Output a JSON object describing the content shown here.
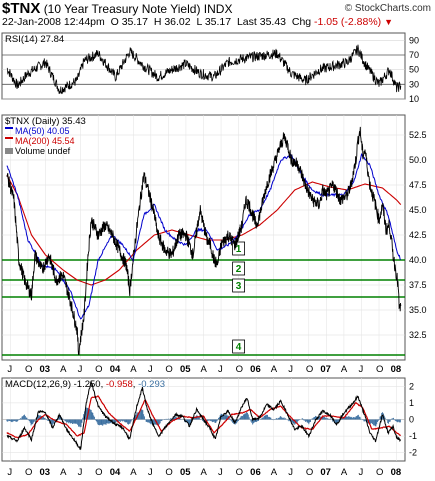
{
  "header": {
    "symbol": "$TNX",
    "name": "(10 Year Treasury Note Yield)",
    "exchange": "INDX",
    "datetime": "22-Jan-2008 12:44pm",
    "open_label": "O",
    "open": "35.17",
    "high_label": "H",
    "high": "36.02",
    "low_label": "L",
    "low": "35.17",
    "last_label": "Last",
    "last": "35.43",
    "chg_label": "Chg",
    "chg": "-1.05 (-2.88%)",
    "brand": "© StockCharts.com"
  },
  "colors": {
    "up": "#000000",
    "ma50": "#0000cc",
    "ma200": "#cc0000",
    "support": "#008000",
    "histogram": "#3b6fa0",
    "signal": "#cc0000"
  },
  "chart_data": [
    {
      "type": "line",
      "panel": "RSI",
      "label": "RSI(14)",
      "last_value": 27.84,
      "ylim": [
        10,
        100
      ],
      "ticks": [
        10,
        30,
        50,
        70,
        90
      ],
      "overbought": 70,
      "oversold": 30,
      "series_x_range": [
        2002.45,
        2008.06
      ],
      "anchors": [
        [
          2002.45,
          52
        ],
        [
          2002.6,
          28
        ],
        [
          2002.75,
          45
        ],
        [
          2003.0,
          60
        ],
        [
          2003.2,
          22
        ],
        [
          2003.45,
          35
        ],
        [
          2003.55,
          62
        ],
        [
          2003.75,
          72
        ],
        [
          2004.0,
          40
        ],
        [
          2004.2,
          75
        ],
        [
          2004.4,
          55
        ],
        [
          2004.6,
          40
        ],
        [
          2004.8,
          50
        ],
        [
          2005.0,
          58
        ],
        [
          2005.2,
          45
        ],
        [
          2005.4,
          40
        ],
        [
          2005.6,
          60
        ],
        [
          2005.8,
          65
        ],
        [
          2006.0,
          68
        ],
        [
          2006.3,
          72
        ],
        [
          2006.5,
          45
        ],
        [
          2006.7,
          35
        ],
        [
          2006.9,
          50
        ],
        [
          2007.1,
          55
        ],
        [
          2007.3,
          60
        ],
        [
          2007.45,
          78
        ],
        [
          2007.55,
          58
        ],
        [
          2007.75,
          30
        ],
        [
          2007.9,
          50
        ],
        [
          2008.0,
          25
        ],
        [
          2008.06,
          28
        ]
      ]
    },
    {
      "type": "line",
      "panel": "Price",
      "title": "$TNX (Daily) 35.43",
      "legend": [
        {
          "name": "MA(50)",
          "value": "40.05"
        },
        {
          "name": "MA(200)",
          "value": "45.54"
        },
        {
          "name": "Volume",
          "value": "undef"
        }
      ],
      "ylim": [
        30,
        54.5
      ],
      "ticks": [
        32.5,
        35.0,
        37.5,
        40.0,
        42.5,
        45.0,
        47.5,
        50.0,
        52.5
      ],
      "x_ticks": [
        "J",
        "O",
        "03",
        "A",
        "J",
        "O",
        "04",
        "A",
        "J",
        "O",
        "05",
        "A",
        "J",
        "O",
        "06",
        "A",
        "J",
        "O",
        "07",
        "A",
        "J",
        "O",
        "08"
      ],
      "x_tick_dates": [
        2002.5,
        2002.75,
        2003.0,
        2003.25,
        2003.5,
        2003.75,
        2004.0,
        2004.25,
        2004.5,
        2004.75,
        2005.0,
        2005.25,
        2005.5,
        2005.75,
        2006.0,
        2006.25,
        2006.5,
        2006.75,
        2007.0,
        2007.25,
        2007.5,
        2007.75,
        2008.0
      ],
      "price": [
        [
          2002.45,
          48.5
        ],
        [
          2002.55,
          46.0
        ],
        [
          2002.62,
          40.0
        ],
        [
          2002.7,
          38.0
        ],
        [
          2002.8,
          36.5
        ],
        [
          2002.85,
          40.5
        ],
        [
          2002.95,
          39.0
        ],
        [
          2003.05,
          40.5
        ],
        [
          2003.15,
          38.0
        ],
        [
          2003.25,
          38.5
        ],
        [
          2003.35,
          36.0
        ],
        [
          2003.45,
          33.0
        ],
        [
          2003.47,
          30.8
        ],
        [
          2003.55,
          34.5
        ],
        [
          2003.6,
          40.0
        ],
        [
          2003.65,
          44.0
        ],
        [
          2003.75,
          42.5
        ],
        [
          2003.85,
          43.5
        ],
        [
          2003.95,
          42.5
        ],
        [
          2004.05,
          41.0
        ],
        [
          2004.15,
          39.5
        ],
        [
          2004.2,
          37.0
        ],
        [
          2004.28,
          42.0
        ],
        [
          2004.35,
          46.0
        ],
        [
          2004.4,
          48.5
        ],
        [
          2004.48,
          46.5
        ],
        [
          2004.55,
          44.5
        ],
        [
          2004.6,
          42.5
        ],
        [
          2004.7,
          41.0
        ],
        [
          2004.8,
          40.5
        ],
        [
          2004.9,
          42.5
        ],
        [
          2005.0,
          42.5
        ],
        [
          2005.1,
          40.5
        ],
        [
          2005.2,
          45.0
        ],
        [
          2005.3,
          42.0
        ],
        [
          2005.35,
          41.5
        ],
        [
          2005.4,
          40.0
        ],
        [
          2005.45,
          39.5
        ],
        [
          2005.5,
          41.5
        ],
        [
          2005.6,
          42.5
        ],
        [
          2005.7,
          41.5
        ],
        [
          2005.8,
          43.5
        ],
        [
          2005.85,
          46.0
        ],
        [
          2005.9,
          45.5
        ],
        [
          2006.0,
          43.5
        ],
        [
          2006.05,
          44.5
        ],
        [
          2006.15,
          47.5
        ],
        [
          2006.25,
          49.5
        ],
        [
          2006.35,
          51.5
        ],
        [
          2006.4,
          52.3
        ],
        [
          2006.45,
          51.5
        ],
        [
          2006.5,
          50.0
        ],
        [
          2006.6,
          49.5
        ],
        [
          2006.7,
          47.5
        ],
        [
          2006.8,
          46.0
        ],
        [
          2006.9,
          45.5
        ],
        [
          2006.95,
          47.0
        ],
        [
          2007.0,
          46.5
        ],
        [
          2007.1,
          47.5
        ],
        [
          2007.2,
          46.0
        ],
        [
          2007.3,
          46.5
        ],
        [
          2007.35,
          47.5
        ],
        [
          2007.42,
          50.0
        ],
        [
          2007.45,
          52.0
        ],
        [
          2007.48,
          53.0
        ],
        [
          2007.52,
          50.5
        ],
        [
          2007.55,
          51.0
        ],
        [
          2007.62,
          47.5
        ],
        [
          2007.7,
          45.5
        ],
        [
          2007.75,
          44.0
        ],
        [
          2007.8,
          45.5
        ],
        [
          2007.85,
          43.0
        ],
        [
          2007.9,
          43.5
        ],
        [
          2007.95,
          40.5
        ],
        [
          2008.0,
          38.5
        ],
        [
          2008.02,
          37.5
        ],
        [
          2008.04,
          35.0
        ],
        [
          2008.06,
          35.4
        ]
      ],
      "ma50": [
        [
          2002.45,
          49.5
        ],
        [
          2002.6,
          46.5
        ],
        [
          2002.75,
          42.0
        ],
        [
          2002.95,
          39.5
        ],
        [
          2003.15,
          39.0
        ],
        [
          2003.35,
          37.0
        ],
        [
          2003.5,
          34.0
        ],
        [
          2003.62,
          35.5
        ],
        [
          2003.75,
          40.0
        ],
        [
          2003.95,
          42.5
        ],
        [
          2004.1,
          41.5
        ],
        [
          2004.25,
          40.0
        ],
        [
          2004.4,
          44.5
        ],
        [
          2004.55,
          45.5
        ],
        [
          2004.7,
          43.0
        ],
        [
          2004.85,
          42.0
        ],
        [
          2005.0,
          41.5
        ],
        [
          2005.15,
          43.0
        ],
        [
          2005.3,
          43.0
        ],
        [
          2005.45,
          41.0
        ],
        [
          2005.6,
          41.5
        ],
        [
          2005.75,
          42.5
        ],
        [
          2005.9,
          44.5
        ],
        [
          2006.05,
          45.0
        ],
        [
          2006.2,
          47.0
        ],
        [
          2006.35,
          50.0
        ],
        [
          2006.5,
          50.5
        ],
        [
          2006.65,
          48.5
        ],
        [
          2006.8,
          47.0
        ],
        [
          2006.95,
          46.5
        ],
        [
          2007.1,
          46.5
        ],
        [
          2007.25,
          46.5
        ],
        [
          2007.4,
          48.0
        ],
        [
          2007.5,
          50.5
        ],
        [
          2007.62,
          49.5
        ],
        [
          2007.75,
          46.5
        ],
        [
          2007.88,
          44.5
        ],
        [
          2008.0,
          41.0
        ],
        [
          2008.06,
          40.05
        ]
      ],
      "ma200": [
        [
          2002.45,
          48.5
        ],
        [
          2002.6,
          46.5
        ],
        [
          2002.8,
          42.5
        ],
        [
          2003.0,
          40.5
        ],
        [
          2003.25,
          39.0
        ],
        [
          2003.45,
          38.0
        ],
        [
          2003.65,
          37.5
        ],
        [
          2003.85,
          38.0
        ],
        [
          2004.05,
          39.0
        ],
        [
          2004.3,
          41.0
        ],
        [
          2004.55,
          42.5
        ],
        [
          2004.8,
          43.0
        ],
        [
          2005.05,
          42.5
        ],
        [
          2005.3,
          42.0
        ],
        [
          2005.55,
          42.0
        ],
        [
          2005.8,
          42.5
        ],
        [
          2006.05,
          43.5
        ],
        [
          2006.3,
          45.0
        ],
        [
          2006.55,
          47.0
        ],
        [
          2006.8,
          47.8
        ],
        [
          2007.05,
          47.3
        ],
        [
          2007.3,
          47.0
        ],
        [
          2007.55,
          47.6
        ],
        [
          2007.8,
          47.2
        ],
        [
          2008.0,
          46.0
        ],
        [
          2008.06,
          45.54
        ]
      ],
      "support_lines": [
        {
          "label": "1",
          "value": 40.0
        },
        {
          "label": "2",
          "value": 38.0
        },
        {
          "label": "3",
          "value": 36.3
        },
        {
          "label": "4",
          "value": 30.5
        }
      ],
      "annotation_dates": [
        2005.75,
        2005.75,
        2005.75,
        2005.75
      ]
    },
    {
      "type": "line",
      "panel": "MACD",
      "label": "MACD(12,26,9)",
      "values": {
        "macd": "-1.250",
        "signal": "-0.958",
        "histogram": "-0.293"
      },
      "ylim": [
        -2.5,
        2.5
      ],
      "ticks": [
        -2,
        -1,
        0,
        1,
        2
      ],
      "x_ticks": [
        "J",
        "O",
        "03",
        "A",
        "J",
        "O",
        "04",
        "A",
        "J",
        "O",
        "05",
        "A",
        "J",
        "O",
        "06",
        "A",
        "J",
        "O",
        "07",
        "A",
        "J",
        "O",
        "08"
      ],
      "macd": [
        [
          2002.45,
          -1.0
        ],
        [
          2002.6,
          -1.3
        ],
        [
          2002.7,
          -0.5
        ],
        [
          2002.8,
          -1.2
        ],
        [
          2002.9,
          0.5
        ],
        [
          2003.0,
          0.4
        ],
        [
          2003.1,
          -0.5
        ],
        [
          2003.2,
          0.3
        ],
        [
          2003.3,
          -0.6
        ],
        [
          2003.42,
          -1.3
        ],
        [
          2003.5,
          -1.8
        ],
        [
          2003.58,
          1.0
        ],
        [
          2003.65,
          2.3
        ],
        [
          2003.75,
          0.8
        ],
        [
          2003.85,
          0.2
        ],
        [
          2004.0,
          -0.3
        ],
        [
          2004.1,
          -0.5
        ],
        [
          2004.2,
          -1.2
        ],
        [
          2004.3,
          0.8
        ],
        [
          2004.38,
          1.9
        ],
        [
          2004.45,
          0.6
        ],
        [
          2004.55,
          -0.5
        ],
        [
          2004.62,
          -1.0
        ],
        [
          2004.7,
          -0.5
        ],
        [
          2004.85,
          0.3
        ],
        [
          2004.95,
          0.2
        ],
        [
          2005.05,
          -0.4
        ],
        [
          2005.15,
          0.6
        ],
        [
          2005.25,
          0.0
        ],
        [
          2005.35,
          -0.6
        ],
        [
          2005.42,
          -1.2
        ],
        [
          2005.5,
          0.2
        ],
        [
          2005.6,
          0.5
        ],
        [
          2005.7,
          -0.2
        ],
        [
          2005.8,
          0.8
        ],
        [
          2005.87,
          1.3
        ],
        [
          2005.95,
          0.0
        ],
        [
          2006.05,
          0.1
        ],
        [
          2006.15,
          0.9
        ],
        [
          2006.25,
          0.6
        ],
        [
          2006.35,
          1.1
        ],
        [
          2006.45,
          0.3
        ],
        [
          2006.55,
          -0.6
        ],
        [
          2006.65,
          -0.4
        ],
        [
          2006.75,
          -1.0
        ],
        [
          2006.85,
          0.0
        ],
        [
          2006.95,
          0.5
        ],
        [
          2007.05,
          0.3
        ],
        [
          2007.15,
          -0.3
        ],
        [
          2007.25,
          0.4
        ],
        [
          2007.38,
          1.0
        ],
        [
          2007.45,
          1.4
        ],
        [
          2007.55,
          0.2
        ],
        [
          2007.62,
          -0.8
        ],
        [
          2007.7,
          -1.3
        ],
        [
          2007.8,
          0.3
        ],
        [
          2007.88,
          -0.8
        ],
        [
          2007.95,
          -0.4
        ],
        [
          2008.0,
          -1.1
        ],
        [
          2008.06,
          -1.25
        ]
      ],
      "signal": [
        [
          2002.45,
          -0.8
        ],
        [
          2002.6,
          -1.1
        ],
        [
          2002.75,
          -0.9
        ],
        [
          2002.9,
          0.0
        ],
        [
          2003.0,
          0.3
        ],
        [
          2003.15,
          -0.1
        ],
        [
          2003.3,
          -0.3
        ],
        [
          2003.45,
          -1.0
        ],
        [
          2003.55,
          -0.8
        ],
        [
          2003.65,
          1.3
        ],
        [
          2003.75,
          1.4
        ],
        [
          2003.9,
          0.4
        ],
        [
          2004.05,
          -0.2
        ],
        [
          2004.2,
          -0.7
        ],
        [
          2004.32,
          0.3
        ],
        [
          2004.42,
          1.2
        ],
        [
          2004.52,
          0.3
        ],
        [
          2004.65,
          -0.7
        ],
        [
          2004.8,
          -0.1
        ],
        [
          2004.95,
          0.2
        ],
        [
          2005.1,
          0.1
        ],
        [
          2005.25,
          0.2
        ],
        [
          2005.4,
          -0.8
        ],
        [
          2005.52,
          -0.3
        ],
        [
          2005.65,
          0.3
        ],
        [
          2005.8,
          0.4
        ],
        [
          2005.92,
          0.6
        ],
        [
          2006.05,
          0.1
        ],
        [
          2006.2,
          0.6
        ],
        [
          2006.35,
          0.8
        ],
        [
          2006.5,
          0.1
        ],
        [
          2006.65,
          -0.5
        ],
        [
          2006.8,
          -0.6
        ],
        [
          2006.95,
          0.2
        ],
        [
          2007.1,
          0.2
        ],
        [
          2007.25,
          0.1
        ],
        [
          2007.42,
          1.0
        ],
        [
          2007.52,
          0.7
        ],
        [
          2007.65,
          -0.6
        ],
        [
          2007.78,
          -0.5
        ],
        [
          2007.9,
          -0.4
        ],
        [
          2008.0,
          -0.8
        ],
        [
          2008.06,
          -0.96
        ]
      ]
    }
  ]
}
